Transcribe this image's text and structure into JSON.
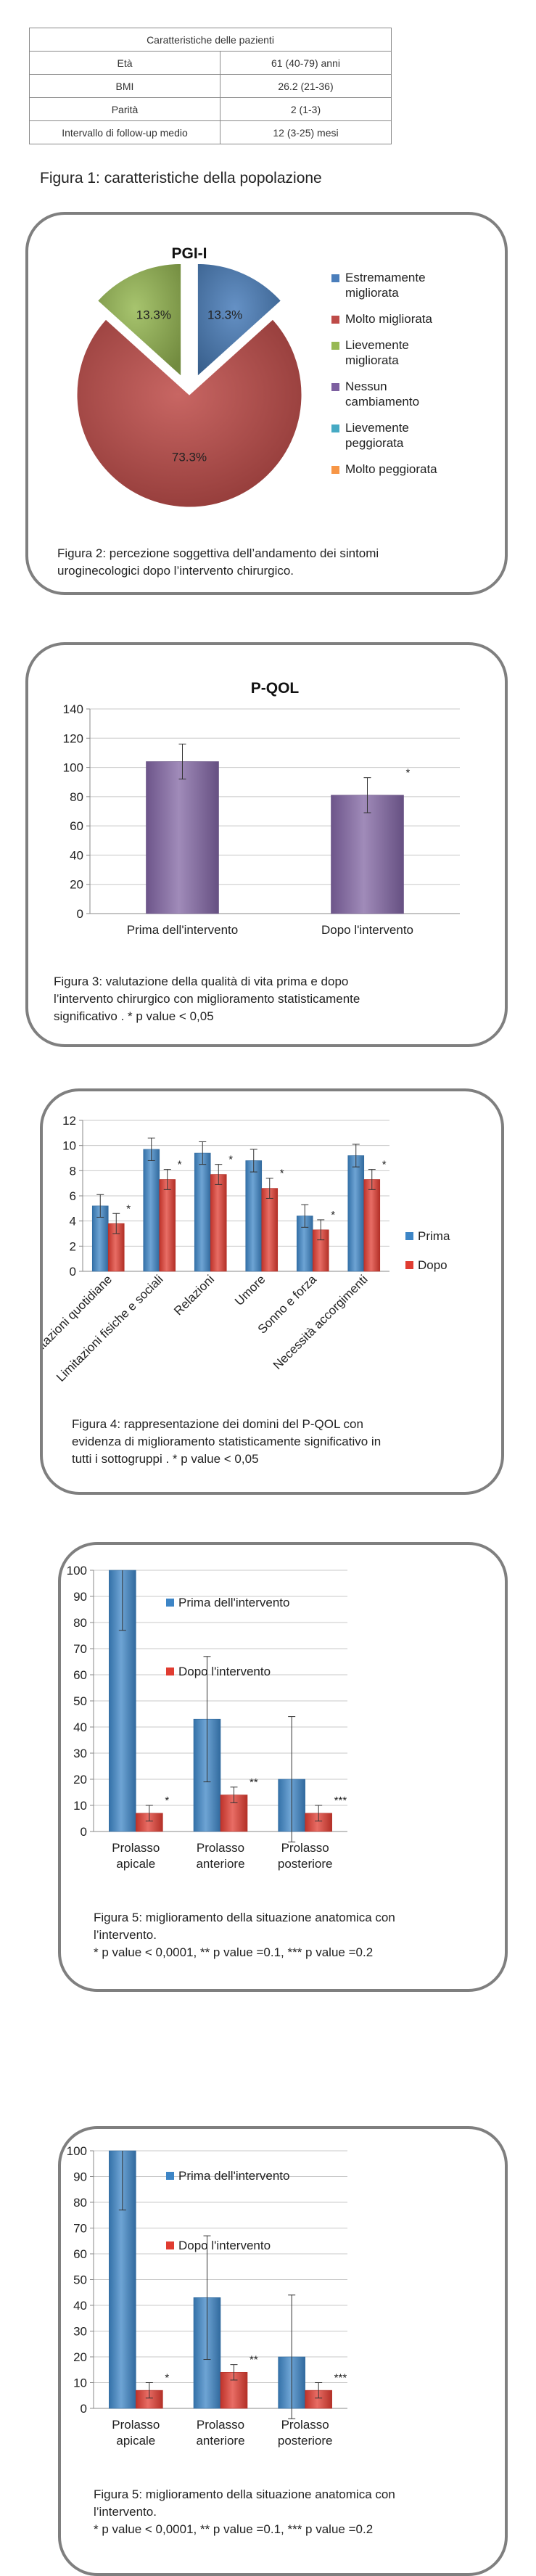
{
  "patient_table": {
    "title": "Caratteristiche delle pazienti",
    "rows": [
      {
        "label": "Età",
        "value": "61 (40-79) anni"
      },
      {
        "label": "BMI",
        "value": "26.2 (21-36)"
      },
      {
        "label": "Parità",
        "value": "2 (1-3)"
      },
      {
        "label": "Intervallo di follow-up medio",
        "value": "12 (3-25) mesi"
      }
    ]
  },
  "figure1_caption": "Figura 1: caratteristiche della popolazione",
  "fig2_caption": [
    "Figura 2: percezione soggettiva dell’andamento dei sintomi",
    "uroginecologici dopo l’intervento chirurgico."
  ],
  "fig3_caption": [
    "Figura 3: valutazione della qualità di vita prima e dopo",
    "l’intervento chirurgico con miglioramento statisticamente",
    "significativo . * p value < 0,05"
  ],
  "fig4_caption": [
    "Figura 4: rappresentazione dei domini del P-QOL con",
    "evidenza di miglioramento statisticamente significativo in",
    "tutti i sottogruppi . * p value < 0,05"
  ],
  "fig5a_caption": [
    "Figura 5: miglioramento della situazione anatomica con",
    "l’intervento.",
    "* p value < 0,0001, ** p value =0.1, *** p value =0.2"
  ],
  "fig5b_caption": [
    "Figura 5: miglioramento della situazione anatomica con",
    "l’intervento.",
    "* p value < 0,0001, ** p value =0.1, *** p value =0.2"
  ],
  "chart_data": [
    {
      "type": "pie",
      "title": "PGI-I",
      "slices": [
        {
          "label": [
            "Estremamente",
            "migliorata"
          ],
          "value": 13.3,
          "value_label": "13.3%",
          "color": "#4a7ebb"
        },
        {
          "label": [
            "Molto migliorata"
          ],
          "value": 73.3,
          "value_label": "73.3%",
          "color": "#be4b48"
        },
        {
          "label": [
            "Lievemente",
            "migliorata"
          ],
          "value": 13.3,
          "value_label": "13.3%",
          "color": "#98b954"
        },
        {
          "label": [
            "Nessun",
            "cambiamento"
          ],
          "value": 0,
          "color": "#7d60a0"
        },
        {
          "label": [
            "Lievemente",
            "peggiorata"
          ],
          "value": 0,
          "color": "#46aac4"
        },
        {
          "label": [
            "Molto peggiorata"
          ],
          "value": 0,
          "color": "#f79646"
        }
      ],
      "legend": "right"
    },
    {
      "type": "bar",
      "title": "P-QOL",
      "categories": [
        "Prima dell'intervento",
        "Dopo l'intervento"
      ],
      "values": [
        104,
        81
      ],
      "errors": [
        12,
        12
      ],
      "annotations": [
        "",
        "*"
      ],
      "ylim": [
        0,
        140
      ],
      "yticks": [
        "0",
        "20",
        "40",
        "60",
        "80",
        "100",
        "120",
        "140"
      ],
      "color": "#8064a2",
      "grid": true
    },
    {
      "type": "bar",
      "categories": [
        "Limitazioni quotidiane",
        "Limitazioni fisiche e sociali",
        "Relazioni",
        "Umore",
        "Sonno e forza",
        "Necessità accorgimenti"
      ],
      "series": [
        {
          "name": "Prima",
          "values": [
            5.2,
            9.7,
            9.4,
            8.8,
            4.4,
            9.2
          ],
          "errors": [
            0.9,
            0.9,
            0.9,
            0.9,
            0.9,
            0.9
          ],
          "color": "#3d85c6"
        },
        {
          "name": "Dopo",
          "values": [
            3.8,
            7.3,
            7.7,
            6.6,
            3.3,
            7.3
          ],
          "errors": [
            0.8,
            0.8,
            0.8,
            0.8,
            0.8,
            0.8
          ],
          "color": "#e03c31",
          "annotations": [
            "*",
            "*",
            "*",
            "*",
            "*",
            "*"
          ]
        }
      ],
      "ylim": [
        0,
        12
      ],
      "yticks": [
        "0",
        "2",
        "4",
        "6",
        "8",
        "10",
        "12"
      ],
      "legend": "right",
      "grid": true
    },
    {
      "type": "bar",
      "categories": [
        [
          "Prolasso",
          "apicale"
        ],
        [
          "Prolasso",
          "anteriore"
        ],
        [
          "Prolasso",
          "posteriore"
        ]
      ],
      "series": [
        {
          "name": "Prima dell'intervento",
          "values": [
            100,
            43,
            20
          ],
          "errors": [
            23,
            24,
            24
          ],
          "color": "#3d85c6"
        },
        {
          "name": "Dopo l'intervento",
          "values": [
            7,
            14,
            7
          ],
          "errors": [
            3,
            3,
            3
          ],
          "color": "#e03c31",
          "annotations": [
            "*",
            "**",
            "***"
          ]
        }
      ],
      "ylim": [
        0,
        100
      ],
      "yticks": [
        "0",
        "10",
        "20",
        "30",
        "40",
        "50",
        "60",
        "70",
        "80",
        "90",
        "100"
      ],
      "legend": "top-right",
      "grid": true
    },
    {
      "type": "bar",
      "categories": [
        [
          "Prolasso",
          "apicale"
        ],
        [
          "Prolasso",
          "anteriore"
        ],
        [
          "Prolasso",
          "posteriore"
        ]
      ],
      "series": [
        {
          "name": "Prima dell'intervento",
          "values": [
            100,
            43,
            20
          ],
          "errors": [
            23,
            24,
            24
          ],
          "color": "#3d85c6"
        },
        {
          "name": "Dopo l'intervento",
          "values": [
            7,
            14,
            7
          ],
          "errors": [
            3,
            3,
            3
          ],
          "color": "#e03c31",
          "annotations": [
            "*",
            "**",
            "***"
          ]
        }
      ],
      "ylim": [
        0,
        100
      ],
      "yticks": [
        "0",
        "10",
        "20",
        "30",
        "40",
        "50",
        "60",
        "70",
        "80",
        "90",
        "100"
      ],
      "legend": "top-right",
      "grid": true
    }
  ]
}
